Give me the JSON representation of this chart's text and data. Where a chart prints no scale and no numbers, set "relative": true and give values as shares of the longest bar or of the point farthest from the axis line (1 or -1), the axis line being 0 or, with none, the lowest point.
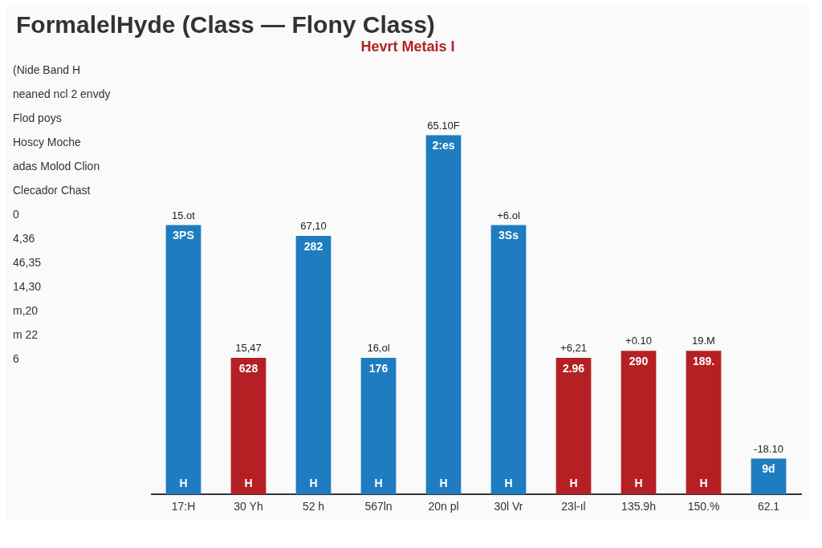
{
  "chart_data": {
    "type": "bar",
    "title": "FormalelHyde (Class — Flony Class)",
    "subtitle": "Hevrt Metais I",
    "categories": [
      "17:H",
      "30 Yh",
      "52 h",
      "567ln",
      "20n pl",
      "30l Vr",
      "23l-ıl",
      "135.9h",
      "150.%",
      "62.1"
    ],
    "values": [
      0.75,
      0.38,
      0.72,
      0.38,
      1,
      0.75,
      0.38,
      0.4,
      0.4,
      0.1
    ],
    "colors": [
      "#1f7cc0",
      "#b52025",
      "#1f7cc0",
      "#1f7cc0",
      "#1f7cc0",
      "#1f7cc0",
      "#b52025",
      "#b52025",
      "#b52025",
      "#1f7cc0"
    ],
    "relative": true,
    "annotations": [
      "(Nide Band H",
      {
        "text": "15.ot",
        "x": "17:H",
        "y": 0.75
      },
      {
        "text": "15,47",
        "x": "30 Yh",
        "y": 0.38
      },
      {
        "text": "67,10",
        "x": "52 h",
        "y": 0.72
      },
      {
        "text": "16,ol",
        "x": "567ln",
        "y": 0.38
      },
      {
        "text": "65.10F",
        "x": "20n pl",
        "y": 1
      },
      {
        "text": "+6.ol",
        "x": "30l Vr",
        "y": 0.75
      },
      {
        "text": "+6,21",
        "x": "23l-ıl",
        "y": 0.38
      },
      {
        "text": "+0.10",
        "x": "135.9h",
        "y": 0.4
      },
      {
        "text": "19.M",
        "x": "150.%",
        "y": 0.4
      },
      {
        "text": "-18.10",
        "x": "62.1",
        "y": 0.1
      },
      "neaned ncl 2 envdy",
      "Flod poys",
      "Hoscy Moche",
      "adas Molod Clion",
      "Clecador Chast",
      "0",
      "4,36",
      "46,35",
      "14,30",
      "m,20",
      "m 22",
      "6",
      {
        "text": "3PS",
        "x": "17:H",
        "y": 0.75
      },
      {
        "text": "628",
        "x": "30 Yh",
        "y": 0.38
      },
      {
        "text": "282",
        "x": "52 h",
        "y": 0.72
      },
      {
        "text": "176",
        "x": "567ln",
        "y": 0.38
      },
      {
        "text": "2:es",
        "x": "20n pl",
        "y": 1
      },
      {
        "text": "3Ss",
        "x": "30l Vr",
        "y": 0.75
      },
      {
        "text": "2.96",
        "x": "23l-ıl",
        "y": 0.38
      },
      {
        "text": "290",
        "x": "135.9h",
        "y": 0.4
      },
      {
        "text": "189.",
        "x": "150.%",
        "y": 0.4
      },
      {
        "text": "9d",
        "x": "62.1",
        "y": 0.1
      },
      {
        "text": "H",
        "x": "17:H",
        "y": 0
      },
      {
        "text": "H",
        "x": "30 Yh",
        "y": 0
      },
      {
        "text": "H",
        "x": "52 h",
        "y": 0
      },
      {
        "text": "H",
        "x": "567ln",
        "y": 0
      },
      {
        "text": "H",
        "x": "20n pl",
        "y": 0
      },
      {
        "text": "H",
        "x": "30l Vr",
        "y": 0
      },
      {
        "text": "H",
        "x": "23l-ıl",
        "y": 0
      },
      {
        "text": "H",
        "x": "135.9h",
        "y": 0
      },
      {
        "text": "H",
        "x": "150.%",
        "y": 0
      }
    ]
  }
}
